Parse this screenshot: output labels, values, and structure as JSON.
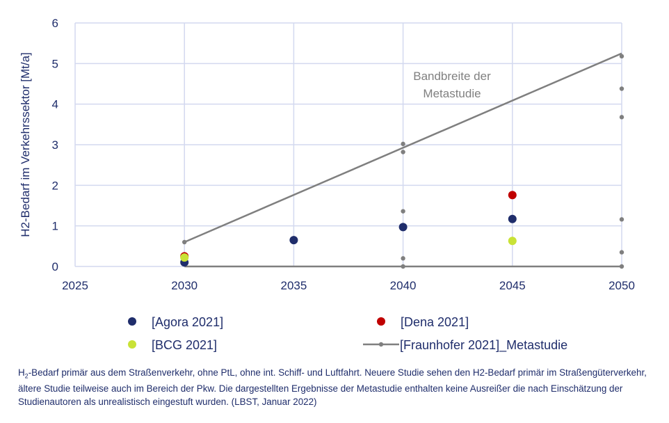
{
  "chart_data": {
    "type": "scatter",
    "ylabel": "H2-Bedarf im Verkehrssektor [Mt/a]",
    "xlim": [
      2025,
      2050
    ],
    "ylim": [
      0,
      6
    ],
    "x_ticks": [
      "2025",
      "2030",
      "2035",
      "2040",
      "2045",
      "2050"
    ],
    "y_ticks": [
      "0",
      "1",
      "2",
      "3",
      "4",
      "5",
      "6"
    ],
    "grid": true,
    "annotation": {
      "line1": "Bandbreite der",
      "line2": "Metastudie"
    },
    "series": [
      {
        "name": "[Agora 2021]",
        "color": "#1f2d6b",
        "marker": "circle",
        "points": [
          [
            2030,
            0.1
          ],
          [
            2035,
            0.65
          ],
          [
            2040,
            0.97
          ],
          [
            2045,
            1.17
          ]
        ]
      },
      {
        "name": "[Dena 2021]",
        "color": "#c00000",
        "marker": "circle",
        "points": [
          [
            2030,
            0.25
          ],
          [
            2045,
            1.76
          ]
        ]
      },
      {
        "name": "[BCG 2021]",
        "color": "#c9e236",
        "marker": "circle",
        "points": [
          [
            2030,
            0.22
          ],
          [
            2045,
            0.63
          ]
        ]
      },
      {
        "name": "[Fraunhofer 2021]_Metastudie",
        "color": "#7f7f7f",
        "marker": "small-circle",
        "points": [
          [
            2030,
            0.6
          ],
          [
            2040,
            3.02
          ],
          [
            2040,
            2.82
          ],
          [
            2040,
            1.36
          ],
          [
            2040,
            0.93
          ],
          [
            2040,
            0.2
          ],
          [
            2040,
            0.0
          ],
          [
            2050,
            5.18
          ],
          [
            2050,
            4.38
          ],
          [
            2050,
            3.68
          ],
          [
            2050,
            1.16
          ],
          [
            2050,
            0.35
          ],
          [
            2050,
            0.0
          ]
        ]
      }
    ],
    "band_lines": [
      {
        "points": [
          [
            2030,
            0.6
          ],
          [
            2050,
            5.25
          ]
        ]
      },
      {
        "points": [
          [
            2030,
            0.0
          ],
          [
            2050,
            0.0
          ]
        ]
      }
    ],
    "legend_position": "bottom"
  },
  "footnote": {
    "h2_prefix": "H",
    "h2_sub": "2",
    "text": "-Bedarf primär aus dem Straßenverkehr, ohne PtL, ohne int. Schiff- und Luftfahrt. Neuere Studie sehen den H2-Bedarf primär im Straßengüterverkehr, ältere Studie teilweise auch im Bereich der Pkw. Die dargestellten Ergebnisse der Metastudie enthalten keine Ausreißer die nach Einschätzung der Studienautoren als unrealistisch eingestuft wurden. (LBST, Januar 2022)"
  }
}
